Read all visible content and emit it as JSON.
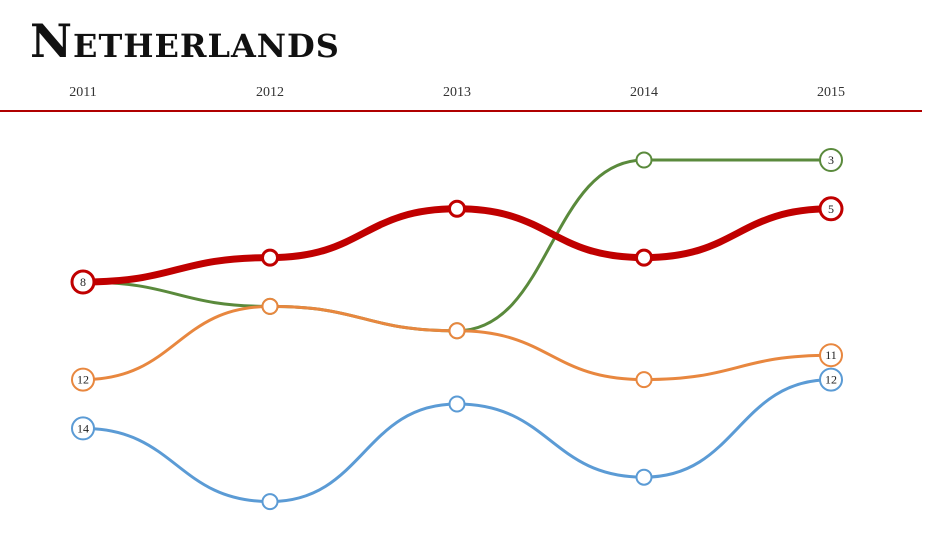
{
  "title": "Netherlands",
  "chart_data": {
    "type": "line",
    "title": "Netherlands",
    "y_axis": "rank",
    "y_inverted": true,
    "ylim": [
      2,
      17
    ],
    "categories": [
      "2011",
      "2012",
      "2013",
      "2014",
      "2015"
    ],
    "series": [
      {
        "values": [
          8,
          9,
          10,
          3,
          3
        ],
        "color": "#5a8a3c",
        "start_label": "",
        "end_label": "3"
      },
      {
        "values": [
          8,
          7,
          5,
          7,
          5
        ],
        "color": "#c00000",
        "start_label": "8",
        "end_label": "5",
        "emphasis": true
      },
      {
        "values": [
          12,
          9,
          10,
          12,
          11
        ],
        "color": "#e8873f",
        "start_label": "12",
        "end_label": "11"
      },
      {
        "values": [
          14,
          17,
          13,
          16,
          12
        ],
        "color": "#5b9bd5",
        "start_label": "14",
        "end_label": "12"
      }
    ],
    "grid": false,
    "legend": "none"
  }
}
